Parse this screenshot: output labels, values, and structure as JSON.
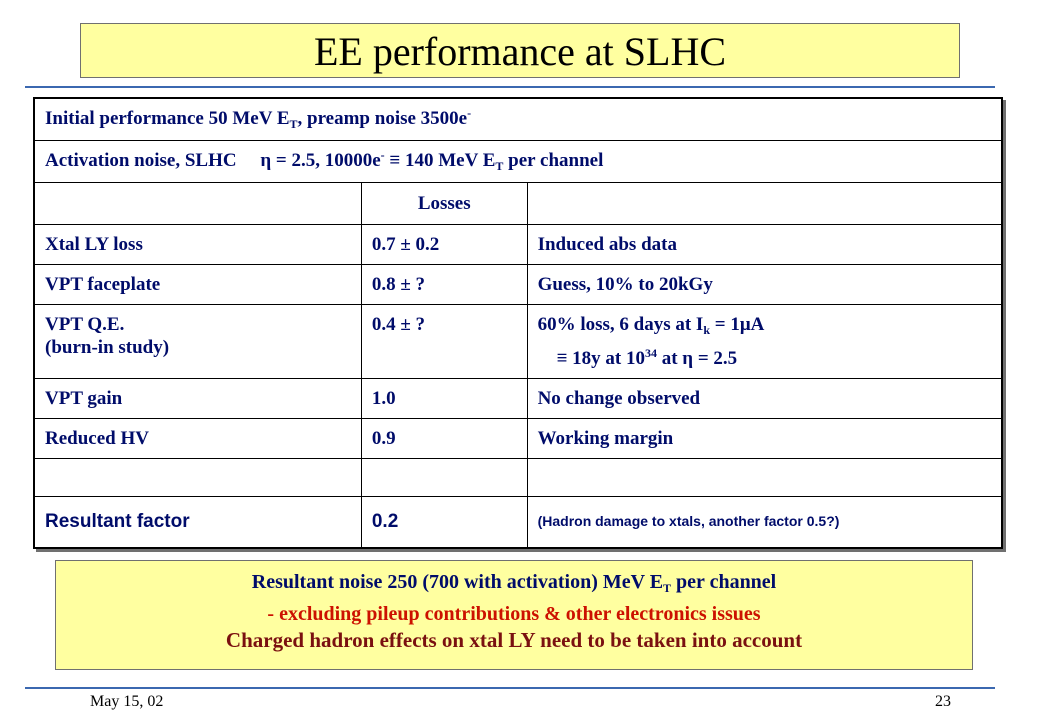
{
  "title": "EE performance at SLHC",
  "table": {
    "header1": {
      "a": "Initial performance 50 MeV E",
      "sub": "T",
      "b": ", preamp noise 3500e",
      "sup": "-"
    },
    "header2": {
      "a": "Activation noise, SLHC  η = 2.5,  10000e",
      "sup": "-",
      "b": " ≡ 140 MeV E",
      "sub": "T",
      "c": " per channel"
    },
    "losses_header": "Losses",
    "rows": [
      {
        "item": "Xtal LY loss",
        "factor": "0.7 ± 0.2",
        "note": "Induced abs data"
      },
      {
        "item": "VPT faceplate",
        "factor": "0.8 ± ?",
        "note": "Guess, 10% to 20kGy"
      },
      {
        "item_l1": "VPT Q.E.",
        "item_l2": "(burn-in study)",
        "factor": "0.4 ± ?",
        "note_l1a": "60% loss, 6 days at I",
        "note_l1sub": "k",
        "note_l1b": " = 1μA",
        "note_l2a": " ≡ 18y at 10",
        "note_l2sup": "34",
        "note_l2b": " at η = 2.5"
      },
      {
        "item": "VPT gain",
        "factor": "1.0",
        "note": "No change observed"
      },
      {
        "item": "Reduced HV",
        "factor": "0.9",
        "note": "Working margin"
      },
      {
        "item": "Resultant factor",
        "factor": "0.2",
        "note": "(Hadron damage to xtals, another factor 0.5?)"
      }
    ]
  },
  "summary": {
    "line1a": "Resultant noise 250 (700 with activation) MeV E",
    "line1sub": "T",
    "line1b": " per channel",
    "line2": "- excluding pileup contributions & other electronics issues",
    "line3": "Charged hadron effects on xtal LY need to be taken into account"
  },
  "footer": {
    "date": "May 15, 02",
    "page": "23"
  },
  "colors": {
    "title_bg": "#ffffa0",
    "table_text": "#000c6a",
    "rule": "#3b68b0",
    "note_red": "#cc1100",
    "note_dark": "#7a1010"
  }
}
